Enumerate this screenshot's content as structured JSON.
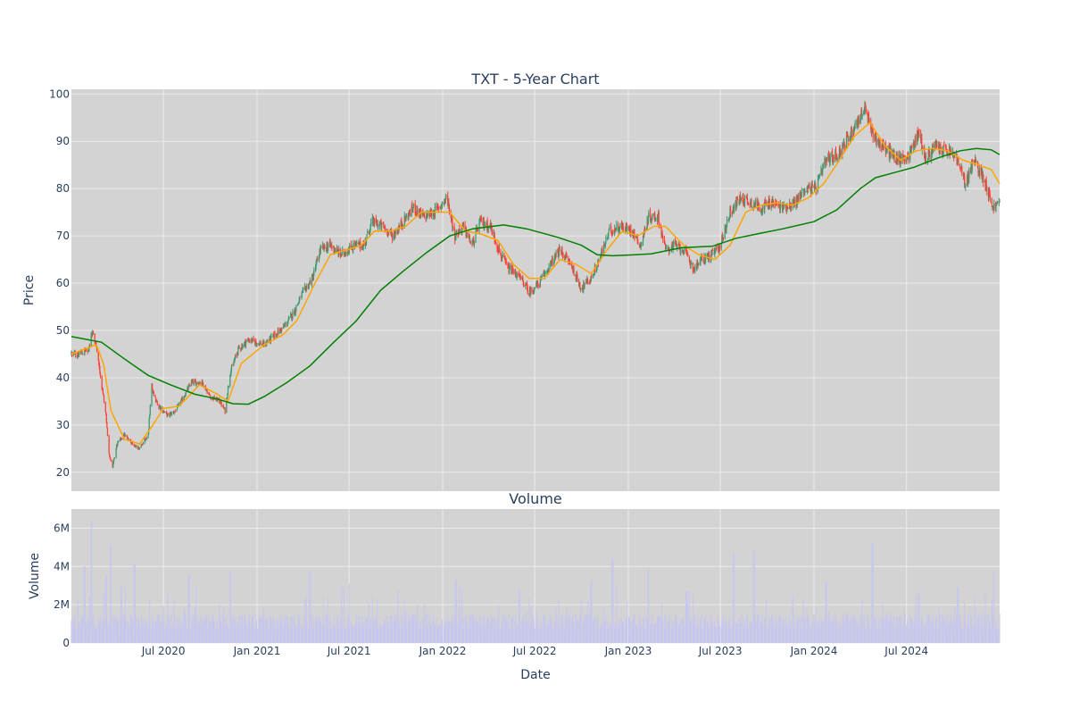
{
  "chart_data": [
    {
      "type": "candlestick",
      "title": "TXT - 5-Year Chart",
      "ylabel": "Price",
      "ylim": [
        16,
        101
      ],
      "yticks": [
        20,
        30,
        40,
        50,
        60,
        70,
        80,
        90,
        100
      ],
      "xrange": [
        "2020-01-02",
        "2024-12-31"
      ],
      "xticks": [
        {
          "date": "2020-07-01",
          "label": "Jul 2020"
        },
        {
          "date": "2021-01-01",
          "label": "Jan 2021"
        },
        {
          "date": "2021-07-01",
          "label": "Jul 2021"
        },
        {
          "date": "2022-01-01",
          "label": "Jan 2022"
        },
        {
          "date": "2022-07-01",
          "label": "Jul 2022"
        },
        {
          "date": "2023-01-01",
          "label": "Jan 2023"
        },
        {
          "date": "2023-07-01",
          "label": "Jul 2023"
        },
        {
          "date": "2024-01-01",
          "label": "Jan 2024"
        },
        {
          "date": "2024-07-01",
          "label": "Jul 2024"
        }
      ],
      "price_path": [
        [
          "2020-01-02",
          45
        ],
        [
          "2020-01-20",
          45
        ],
        [
          "2020-02-05",
          46
        ],
        [
          "2020-02-12",
          50
        ],
        [
          "2020-02-20",
          47
        ],
        [
          "2020-02-28",
          40
        ],
        [
          "2020-03-09",
          33
        ],
        [
          "2020-03-16",
          24
        ],
        [
          "2020-03-23",
          21
        ],
        [
          "2020-04-01",
          26
        ],
        [
          "2020-04-15",
          28
        ],
        [
          "2020-05-01",
          26
        ],
        [
          "2020-05-15",
          25
        ],
        [
          "2020-06-01",
          28
        ],
        [
          "2020-06-08",
          38
        ],
        [
          "2020-06-20",
          34
        ],
        [
          "2020-07-10",
          32
        ],
        [
          "2020-07-25",
          33
        ],
        [
          "2020-08-10",
          36
        ],
        [
          "2020-08-25",
          39
        ],
        [
          "2020-09-15",
          39
        ],
        [
          "2020-10-01",
          36
        ],
        [
          "2020-10-20",
          35
        ],
        [
          "2020-10-30",
          33
        ],
        [
          "2020-11-09",
          41
        ],
        [
          "2020-11-25",
          46
        ],
        [
          "2020-12-15",
          48
        ],
        [
          "2021-01-15",
          47
        ],
        [
          "2021-02-05",
          49
        ],
        [
          "2021-02-25",
          51
        ],
        [
          "2021-03-15",
          54
        ],
        [
          "2021-04-01",
          58
        ],
        [
          "2021-04-20",
          61
        ],
        [
          "2021-05-05",
          67
        ],
        [
          "2021-05-25",
          68
        ],
        [
          "2021-06-15",
          66
        ],
        [
          "2021-07-10",
          68
        ],
        [
          "2021-07-30",
          68
        ],
        [
          "2021-08-15",
          73
        ],
        [
          "2021-09-05",
          72
        ],
        [
          "2021-09-25",
          70
        ],
        [
          "2021-10-15",
          73
        ],
        [
          "2021-11-05",
          76
        ],
        [
          "2021-11-25",
          74
        ],
        [
          "2021-12-15",
          75
        ],
        [
          "2022-01-10",
          78
        ],
        [
          "2022-01-25",
          70
        ],
        [
          "2022-02-10",
          72
        ],
        [
          "2022-02-28",
          68
        ],
        [
          "2022-03-15",
          73
        ],
        [
          "2022-04-05",
          72
        ],
        [
          "2022-04-25",
          66
        ],
        [
          "2022-05-10",
          63
        ],
        [
          "2022-05-25",
          62
        ],
        [
          "2022-06-10",
          60
        ],
        [
          "2022-06-20",
          58
        ],
        [
          "2022-07-10",
          60
        ],
        [
          "2022-08-01",
          64
        ],
        [
          "2022-08-20",
          67
        ],
        [
          "2022-09-10",
          64
        ],
        [
          "2022-09-30",
          59
        ],
        [
          "2022-10-20",
          61
        ],
        [
          "2022-11-05",
          65
        ],
        [
          "2022-11-25",
          71
        ],
        [
          "2022-12-15",
          72
        ],
        [
          "2023-01-10",
          71
        ],
        [
          "2023-01-25",
          68
        ],
        [
          "2023-02-10",
          74
        ],
        [
          "2023-03-01",
          74
        ],
        [
          "2023-03-15",
          67
        ],
        [
          "2023-04-01",
          68
        ],
        [
          "2023-04-20",
          67
        ],
        [
          "2023-05-10",
          63
        ],
        [
          "2023-05-25",
          65
        ],
        [
          "2023-06-15",
          66
        ],
        [
          "2023-07-01",
          68
        ],
        [
          "2023-07-20",
          75
        ],
        [
          "2023-08-10",
          78
        ],
        [
          "2023-09-01",
          77
        ],
        [
          "2023-09-20",
          76
        ],
        [
          "2023-10-10",
          77
        ],
        [
          "2023-11-01",
          76
        ],
        [
          "2023-11-25",
          77
        ],
        [
          "2023-12-15",
          80
        ],
        [
          "2024-01-05",
          80
        ],
        [
          "2024-01-25",
          86
        ],
        [
          "2024-02-15",
          87
        ],
        [
          "2024-03-05",
          90
        ],
        [
          "2024-03-25",
          94
        ],
        [
          "2024-04-10",
          97
        ],
        [
          "2024-04-20",
          93
        ],
        [
          "2024-05-05",
          90
        ],
        [
          "2024-05-25",
          88
        ],
        [
          "2024-06-15",
          86
        ],
        [
          "2024-07-05",
          87
        ],
        [
          "2024-07-25",
          92
        ],
        [
          "2024-08-08",
          86
        ],
        [
          "2024-08-25",
          89
        ],
        [
          "2024-09-15",
          88
        ],
        [
          "2024-10-05",
          87
        ],
        [
          "2024-10-25",
          81
        ],
        [
          "2024-11-10",
          86
        ],
        [
          "2024-12-01",
          82
        ],
        [
          "2024-12-18",
          76
        ],
        [
          "2024-12-31",
          77
        ]
      ],
      "series": [
        {
          "name": "",
          "color": "#ffa500",
          "points": [
            [
              "2020-01-02",
              45
            ],
            [
              "2020-02-20",
              47
            ],
            [
              "2020-03-05",
              43
            ],
            [
              "2020-03-20",
              33
            ],
            [
              "2020-04-15",
              27
            ],
            [
              "2020-05-15",
              26
            ],
            [
              "2020-06-10",
              30
            ],
            [
              "2020-07-01",
              33.5
            ],
            [
              "2020-08-01",
              34
            ],
            [
              "2020-09-10",
              38.5
            ],
            [
              "2020-10-15",
              36.5
            ],
            [
              "2020-11-05",
              35
            ],
            [
              "2020-12-01",
              43
            ],
            [
              "2021-01-15",
              47
            ],
            [
              "2021-02-20",
              49
            ],
            [
              "2021-03-20",
              52
            ],
            [
              "2021-04-25",
              60
            ],
            [
              "2021-05-25",
              66
            ],
            [
              "2021-06-25",
              67
            ],
            [
              "2021-07-25",
              68
            ],
            [
              "2021-08-20",
              71
            ],
            [
              "2021-09-20",
              71
            ],
            [
              "2021-10-20",
              72
            ],
            [
              "2021-11-20",
              75
            ],
            [
              "2021-12-20",
              75
            ],
            [
              "2022-01-15",
              75
            ],
            [
              "2022-02-15",
              71
            ],
            [
              "2022-03-15",
              70.5
            ],
            [
              "2022-04-20",
              69
            ],
            [
              "2022-05-20",
              64
            ],
            [
              "2022-06-20",
              61
            ],
            [
              "2022-07-20",
              61
            ],
            [
              "2022-08-20",
              65
            ],
            [
              "2022-09-20",
              64
            ],
            [
              "2022-10-20",
              62
            ],
            [
              "2022-11-20",
              67
            ],
            [
              "2022-12-20",
              71
            ],
            [
              "2023-01-20",
              70
            ],
            [
              "2023-02-20",
              72
            ],
            [
              "2023-03-15",
              72
            ],
            [
              "2023-04-20",
              68
            ],
            [
              "2023-05-20",
              66
            ],
            [
              "2023-06-20",
              65
            ],
            [
              "2023-07-20",
              68
            ],
            [
              "2023-08-20",
              75
            ],
            [
              "2023-09-20",
              76.5
            ],
            [
              "2023-10-20",
              77
            ],
            [
              "2023-11-20",
              76.5
            ],
            [
              "2023-12-20",
              78
            ],
            [
              "2024-01-20",
              81
            ],
            [
              "2024-02-20",
              86
            ],
            [
              "2024-03-20",
              91
            ],
            [
              "2024-04-20",
              94
            ],
            [
              "2024-05-20",
              89
            ],
            [
              "2024-06-20",
              86
            ],
            [
              "2024-07-20",
              88
            ],
            [
              "2024-08-20",
              88.5
            ],
            [
              "2024-09-20",
              88
            ],
            [
              "2024-10-20",
              86
            ],
            [
              "2024-11-20",
              85
            ],
            [
              "2024-12-15",
              84
            ],
            [
              "2024-12-31",
              81
            ]
          ]
        },
        {
          "name": "",
          "color": "#008000",
          "points": [
            [
              "2020-01-02",
              48.7
            ],
            [
              "2020-03-01",
              47.5
            ],
            [
              "2020-04-15",
              44
            ],
            [
              "2020-06-01",
              40.5
            ],
            [
              "2020-07-15",
              38.5
            ],
            [
              "2020-09-01",
              36.5
            ],
            [
              "2020-10-15",
              35.5
            ],
            [
              "2020-11-15",
              34.5
            ],
            [
              "2020-12-15",
              34.4
            ],
            [
              "2021-01-15",
              36
            ],
            [
              "2021-03-01",
              39
            ],
            [
              "2021-04-15",
              42.5
            ],
            [
              "2021-06-01",
              47.5
            ],
            [
              "2021-07-15",
              52
            ],
            [
              "2021-09-01",
              58.5
            ],
            [
              "2021-10-15",
              62.5
            ],
            [
              "2021-12-01",
              66.5
            ],
            [
              "2022-01-15",
              70
            ],
            [
              "2022-03-01",
              71.5
            ],
            [
              "2022-05-01",
              72.3
            ],
            [
              "2022-06-15",
              71.5
            ],
            [
              "2022-08-15",
              69.7
            ],
            [
              "2022-10-01",
              68
            ],
            [
              "2022-11-01",
              66
            ],
            [
              "2022-12-01",
              65.8
            ],
            [
              "2023-01-15",
              66
            ],
            [
              "2023-02-15",
              66.2
            ],
            [
              "2023-04-15",
              67.5
            ],
            [
              "2023-06-15",
              67.8
            ],
            [
              "2023-08-01",
              69.5
            ],
            [
              "2023-09-15",
              70.5
            ],
            [
              "2023-11-01",
              71.5
            ],
            [
              "2024-01-01",
              73
            ],
            [
              "2024-02-15",
              75.5
            ],
            [
              "2024-04-01",
              80
            ],
            [
              "2024-05-01",
              82.3
            ],
            [
              "2024-06-01",
              83.2
            ],
            [
              "2024-07-15",
              84.5
            ],
            [
              "2024-09-01",
              86.5
            ],
            [
              "2024-10-15",
              88
            ],
            [
              "2024-11-15",
              88.5
            ],
            [
              "2024-12-15",
              88.2
            ],
            [
              "2024-12-31",
              87.2
            ]
          ]
        }
      ],
      "up_color": "#3d9970",
      "down_color": "#ff4136"
    },
    {
      "type": "bar",
      "title": "Volume",
      "xlabel": "Date",
      "ylabel": "Volume",
      "ylim": [
        0,
        7000000
      ],
      "yticks": [
        {
          "value": 0,
          "label": "0"
        },
        {
          "value": 2000000,
          "label": "2M"
        },
        {
          "value": 4000000,
          "label": "4M"
        },
        {
          "value": 6000000,
          "label": "6M"
        }
      ],
      "bar_color": "#c6c6ee",
      "baseline_volume": 1200000,
      "volume_spikes": [
        [
          "2020-01-28",
          4000000
        ],
        [
          "2020-02-10",
          6400000
        ],
        [
          "2020-03-10",
          3500000
        ],
        [
          "2020-03-20",
          5100000
        ],
        [
          "2020-04-10",
          3000000
        ],
        [
          "2020-05-05",
          4100000
        ],
        [
          "2020-08-20",
          3600000
        ],
        [
          "2020-11-09",
          3700000
        ],
        [
          "2021-04-15",
          3700000
        ],
        [
          "2021-06-20",
          2900000
        ],
        [
          "2022-01-27",
          3300000
        ],
        [
          "2022-06-01",
          2800000
        ],
        [
          "2022-10-20",
          3200000
        ],
        [
          "2022-12-01",
          4400000
        ],
        [
          "2023-02-10",
          3900000
        ],
        [
          "2023-04-25",
          2700000
        ],
        [
          "2023-07-27",
          4700000
        ],
        [
          "2023-09-05",
          4800000
        ],
        [
          "2023-11-20",
          2500000
        ],
        [
          "2024-01-25",
          3200000
        ],
        [
          "2024-04-25",
          5200000
        ],
        [
          "2024-07-25",
          2600000
        ],
        [
          "2024-10-10",
          2900000
        ],
        [
          "2024-12-20",
          3700000
        ]
      ]
    }
  ]
}
